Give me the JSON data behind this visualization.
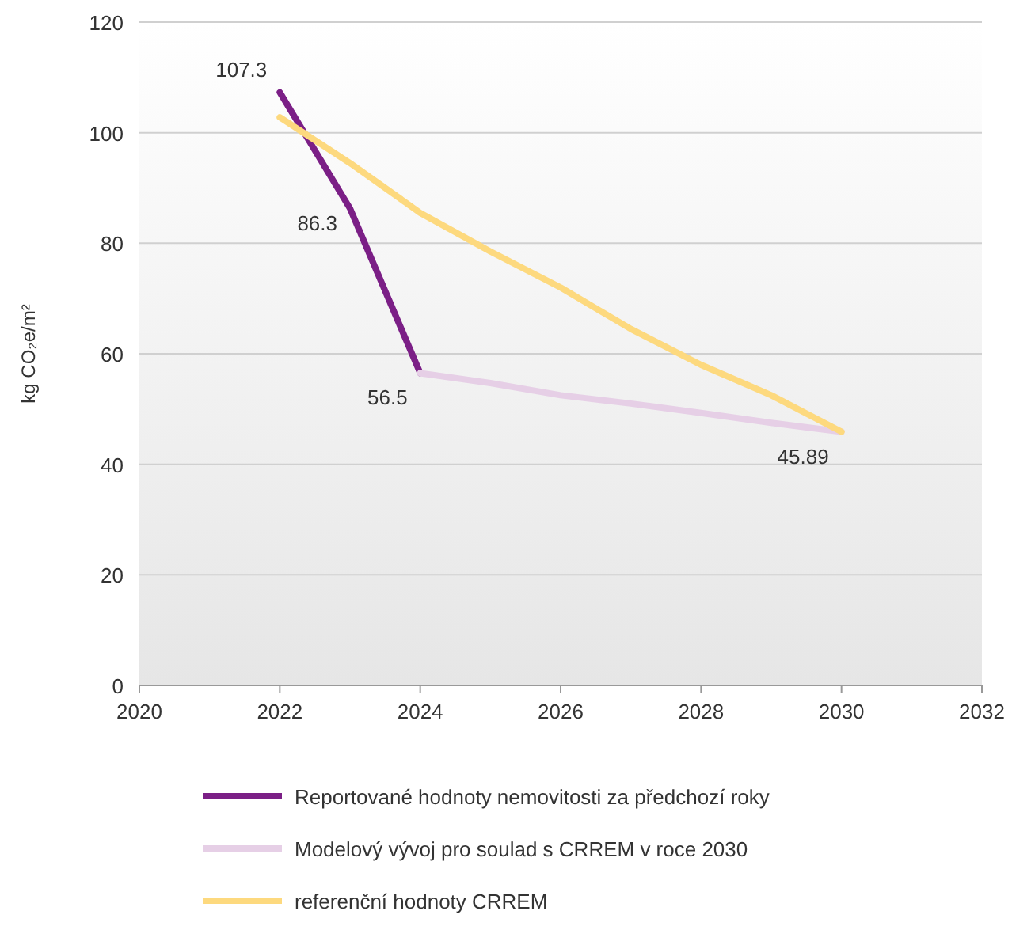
{
  "chart_data": {
    "type": "line",
    "ylabel": "kg CO₂e/m²",
    "xlim": [
      2020,
      2032
    ],
    "xticks": [
      2020,
      2022,
      2024,
      2026,
      2028,
      2030,
      2032
    ],
    "ylim": [
      0,
      120
    ],
    "yticks": [
      0,
      20,
      40,
      60,
      80,
      100,
      120
    ],
    "grid": "y",
    "legend": "bottom",
    "marker": "none",
    "line_style": "solid",
    "series": [
      {
        "name": "Reportované hodnoty nemovitosti za předchozí roky",
        "color": "#7b1f86",
        "x": [
          2022,
          2023,
          2024
        ],
        "values": [
          107.3,
          86.3,
          56.5
        ],
        "value_labels": [
          "107.3",
          "86.3",
          "56.5"
        ]
      },
      {
        "name": "Modelový vývoj pro soulad s CRREM v roce 2030",
        "color": "#e6cfe6",
        "x": [
          2024,
          2025,
          2026,
          2027,
          2028,
          2029,
          2030
        ],
        "values": [
          56.5,
          54.7,
          52.5,
          51,
          49.3,
          47.5,
          45.89
        ],
        "value_labels": [
          null,
          null,
          null,
          null,
          null,
          null,
          "45.89"
        ]
      },
      {
        "name": "referenční hodnoty CRREM",
        "color": "#fdd97e",
        "x": [
          2022,
          2023,
          2024,
          2025,
          2026,
          2027,
          2028,
          2029,
          2030
        ],
        "values": [
          102.8,
          94.5,
          85.5,
          78.5,
          72,
          64.5,
          58,
          52.5,
          45.89
        ]
      }
    ]
  }
}
